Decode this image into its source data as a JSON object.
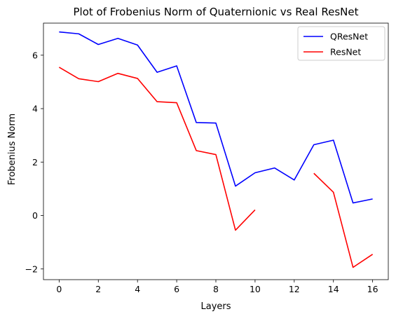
{
  "chart_data": {
    "type": "line",
    "title": "Plot of Frobenius Norm of Quaternionic vs Real ResNet",
    "xlabel": "Layers",
    "ylabel": "Frobenius Norm",
    "xlim": [
      -0.8,
      16.8
    ],
    "ylim": [
      -2.4,
      7.2
    ],
    "xticks": [
      0,
      2,
      4,
      6,
      8,
      10,
      12,
      14,
      16
    ],
    "yticks": [
      -2,
      0,
      2,
      4,
      6
    ],
    "ytick_labels": [
      "−2",
      "0",
      "2",
      "4",
      "6"
    ],
    "grid": false,
    "legend": "top-right",
    "series": [
      {
        "name": "QResNet",
        "color": "#0000ff",
        "x": [
          0,
          1,
          2,
          3,
          4,
          5,
          6,
          7,
          8,
          9,
          10,
          11,
          12,
          13,
          14,
          15,
          16
        ],
        "y": [
          6.87,
          6.8,
          6.4,
          6.63,
          6.38,
          5.36,
          5.6,
          3.48,
          3.46,
          1.1,
          1.6,
          1.78,
          1.33,
          2.65,
          2.82,
          0.47,
          0.62
        ]
      },
      {
        "name": "ResNet",
        "color": "#ff0000",
        "x": [
          0,
          1,
          2,
          3,
          4,
          5,
          6,
          7,
          8,
          9,
          10,
          11,
          12,
          13,
          14,
          15,
          16
        ],
        "y": [
          5.55,
          5.12,
          5.01,
          5.32,
          5.13,
          4.26,
          4.22,
          2.43,
          2.28,
          -0.55,
          0.21,
          null,
          null,
          1.58,
          0.87,
          -1.94,
          -1.45
        ]
      }
    ]
  }
}
